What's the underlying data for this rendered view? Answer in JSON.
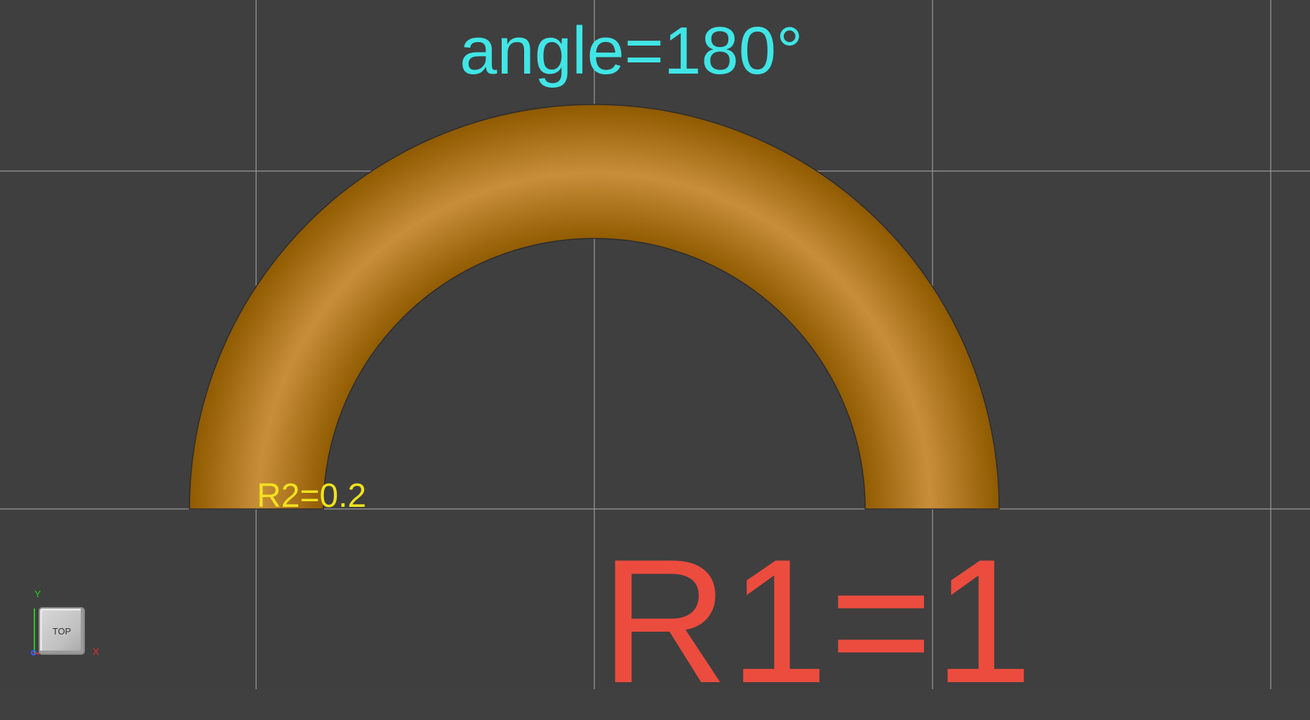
{
  "viewport": {
    "background": "#3f3f3f",
    "grid_color": "#9a9a9a",
    "torus_colors": {
      "edge": "#8f5a00",
      "mid": "#c98e3a",
      "outline": "#2d2d2d"
    }
  },
  "annotations": {
    "angle": "angle=180°",
    "r2": "R2=0.2",
    "r1": "R1=1",
    "angle_color": "#40e6e6",
    "r2_color": "#f0e21e",
    "r1_color": "#ec4c3d"
  },
  "view_cube": {
    "face_label": "TOP",
    "axis_y": "Y",
    "axis_x": "X",
    "axis_y_color": "#22cc22",
    "axis_x_color": "#e23030",
    "axis_z_color": "#3a5cff"
  }
}
